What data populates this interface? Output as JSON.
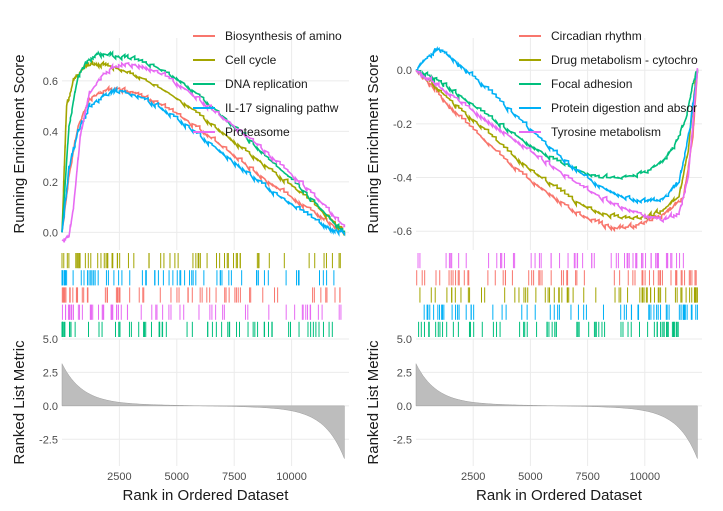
{
  "chart_data": [
    {
      "type": "line",
      "panel": "left",
      "series": [
        {
          "name": "Biosynthesis of amino",
          "color": "#F8766D",
          "x": [
            0,
            300,
            700,
            1200,
            1800,
            2500,
            3200,
            4000,
            5000,
            6000,
            7000,
            8000,
            9000,
            10000,
            11000,
            11800,
            12300
          ],
          "y": [
            0,
            0.22,
            0.42,
            0.53,
            0.56,
            0.57,
            0.55,
            0.52,
            0.47,
            0.41,
            0.34,
            0.27,
            0.2,
            0.14,
            0.08,
            0.03,
            0.0
          ]
        },
        {
          "name": "Cell cycle",
          "color": "#A3A500",
          "x": [
            0,
            200,
            500,
            900,
            1400,
            2000,
            2700,
            3500,
            4500,
            5500,
            6500,
            7500,
            8500,
            9500,
            10500,
            11500,
            12300
          ],
          "y": [
            0,
            0.5,
            0.6,
            0.65,
            0.67,
            0.66,
            0.64,
            0.61,
            0.56,
            0.5,
            0.43,
            0.36,
            0.29,
            0.22,
            0.15,
            0.07,
            0.0
          ]
        },
        {
          "name": "DNA replication",
          "color": "#00BF7D",
          "x": [
            0,
            300,
            700,
            1100,
            1600,
            2200,
            3000,
            4000,
            5000,
            6000,
            7000,
            8000,
            9000,
            10000,
            11000,
            11800,
            12300
          ],
          "y": [
            0,
            0.42,
            0.62,
            0.68,
            0.71,
            0.7,
            0.69,
            0.66,
            0.61,
            0.54,
            0.46,
            0.38,
            0.29,
            0.21,
            0.12,
            0.04,
            0.0
          ]
        },
        {
          "name": "IL-17 signaling pathw",
          "color": "#00B0F6",
          "x": [
            0,
            300,
            700,
            1200,
            1800,
            2500,
            3300,
            4200,
            5200,
            6200,
            7200,
            8200,
            9200,
            10200,
            11200,
            11800,
            12300
          ],
          "y": [
            0,
            0.25,
            0.4,
            0.5,
            0.54,
            0.56,
            0.54,
            0.5,
            0.44,
            0.37,
            0.3,
            0.23,
            0.16,
            0.1,
            0.04,
            0.01,
            0.0
          ]
        },
        {
          "name": "Proteasome",
          "color": "#E76BF3",
          "x": [
            0,
            300,
            500,
            800,
            1200,
            1800,
            2600,
            3500,
            4500,
            5500,
            6500,
            7500,
            8500,
            9500,
            10500,
            11500,
            12300
          ],
          "y": [
            -0.03,
            -0.02,
            0.1,
            0.38,
            0.55,
            0.63,
            0.67,
            0.66,
            0.62,
            0.56,
            0.49,
            0.42,
            0.35,
            0.27,
            0.19,
            0.1,
            0.02
          ]
        }
      ],
      "ylabel": "Running Enrichment Score",
      "xlabel": "Rank in Ordered Dataset",
      "ylabel2": "Ranked List Metric",
      "xlim": [
        0,
        12500
      ],
      "ylim": [
        -0.07,
        0.77
      ],
      "yticks": [
        "0.0",
        "0.2",
        "0.4",
        "0.6"
      ],
      "xticks": [
        "2500",
        "5000",
        "7500",
        "10000"
      ],
      "ylim2": [
        -4.5,
        5
      ],
      "yticks2": [
        "5.0",
        "2.5",
        "0.0",
        "-2.5"
      ],
      "legend_position": "top-right, inside"
    },
    {
      "type": "line",
      "panel": "right",
      "series": [
        {
          "name": "Circadian rhythm",
          "color": "#F8766D",
          "x": [
            0,
            600,
            1200,
            2000,
            3000,
            4000,
            5000,
            6000,
            7000,
            8000,
            8800,
            9500,
            10200,
            11000,
            11700,
            12100,
            12300
          ],
          "y": [
            0,
            -0.05,
            -0.11,
            -0.18,
            -0.26,
            -0.34,
            -0.41,
            -0.47,
            -0.53,
            -0.57,
            -0.59,
            -0.58,
            -0.56,
            -0.53,
            -0.47,
            -0.25,
            0.0
          ]
        },
        {
          "name": "Drug metabolism - cytochro",
          "color": "#A3A500",
          "x": [
            0,
            600,
            1200,
            2000,
            3000,
            4000,
            5000,
            6000,
            7000,
            8000,
            9000,
            10000,
            10800,
            11500,
            11900,
            12200,
            12300
          ],
          "y": [
            0,
            -0.04,
            -0.09,
            -0.15,
            -0.22,
            -0.3,
            -0.37,
            -0.43,
            -0.49,
            -0.53,
            -0.55,
            -0.55,
            -0.52,
            -0.47,
            -0.3,
            -0.05,
            0.0
          ]
        },
        {
          "name": "Focal adhesion",
          "color": "#00BF7D",
          "x": [
            0,
            600,
            1200,
            2000,
            3000,
            4000,
            5000,
            6000,
            7000,
            8000,
            9000,
            10000,
            10800,
            11300,
            11800,
            12100,
            12300
          ],
          "y": [
            0,
            -0.02,
            -0.05,
            -0.1,
            -0.16,
            -0.22,
            -0.28,
            -0.33,
            -0.37,
            -0.4,
            -0.4,
            -0.38,
            -0.34,
            -0.28,
            -0.18,
            -0.05,
            0.0
          ]
        },
        {
          "name": "Protein digestion and absor",
          "color": "#00B0F6",
          "x": [
            0,
            500,
            1000,
            1500,
            2200,
            3000,
            4000,
            5000,
            6000,
            7000,
            8000,
            9000,
            10000,
            10800,
            11500,
            12000,
            12300
          ],
          "y": [
            0,
            0.05,
            0.08,
            0.05,
            0.0,
            -0.06,
            -0.14,
            -0.22,
            -0.3,
            -0.37,
            -0.43,
            -0.47,
            -0.49,
            -0.48,
            -0.42,
            -0.2,
            0.0
          ]
        },
        {
          "name": "Tyrosine metabolism",
          "color": "#E76BF3",
          "x": [
            0,
            500,
            1000,
            2000,
            3000,
            4000,
            5000,
            6000,
            7000,
            8000,
            9000,
            10000,
            10800,
            11500,
            11900,
            12200,
            12300
          ],
          "y": [
            0,
            -0.03,
            -0.06,
            -0.12,
            -0.18,
            -0.24,
            -0.3,
            -0.36,
            -0.42,
            -0.47,
            -0.51,
            -0.54,
            -0.56,
            -0.53,
            -0.4,
            -0.1,
            0.0
          ]
        }
      ],
      "ylabel": "Running Enrichment Score",
      "xlabel": "Rank in Ordered Dataset",
      "ylabel2": "Ranked List Metric",
      "xlim": [
        0,
        12500
      ],
      "ylim": [
        -0.67,
        0.12
      ],
      "yticks": [
        "0.0",
        "-0.2",
        "-0.4",
        "-0.6"
      ],
      "xticks": [
        "2500",
        "5000",
        "7500",
        "10000"
      ],
      "ylim2": [
        -4.5,
        5
      ],
      "yticks2": [
        "5.0",
        "2.5",
        "0.0",
        "-2.5"
      ],
      "legend_position": "top-right, inside"
    }
  ]
}
